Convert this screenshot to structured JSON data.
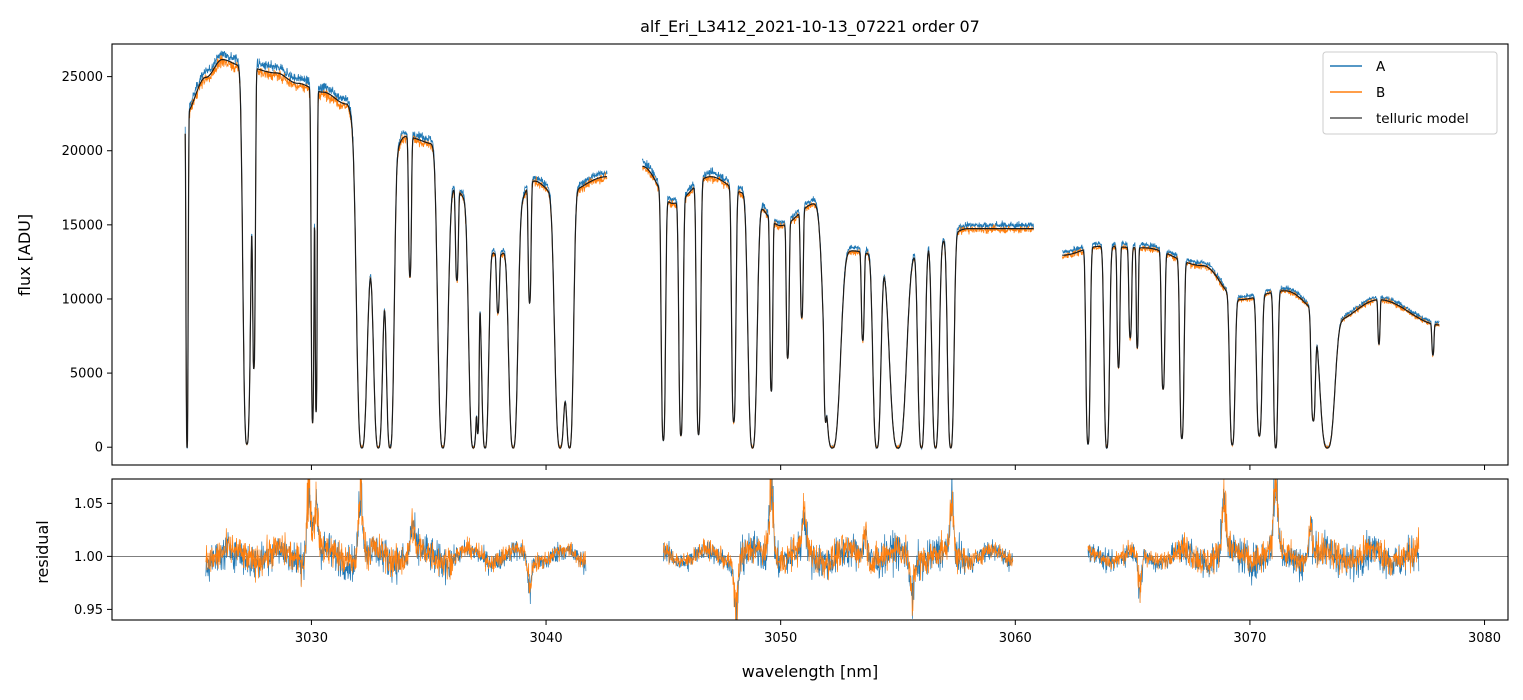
{
  "chart_data": [
    {
      "type": "line",
      "title": "alf_Eri_L3412_2021-10-13_07221  order 07",
      "xlabel": "",
      "ylabel": "flux [ADU]",
      "xlim": [
        3021.5,
        3081
      ],
      "ylim": [
        -1200,
        27200
      ],
      "yticks": [
        0,
        5000,
        10000,
        15000,
        20000,
        25000
      ],
      "xticks": [
        3030,
        3040,
        3050,
        3060,
        3070,
        3080
      ],
      "xticks_labeled": false,
      "legend": {
        "placement": "top-right",
        "entries": [
          "A",
          "B",
          "telluric model"
        ]
      },
      "series": [
        {
          "name": "A",
          "color": "#1f77b4"
        },
        {
          "name": "B",
          "color": "#ff7f0e"
        },
        {
          "name": "telluric model",
          "color": "#222222"
        }
      ],
      "continuum_nodes": [
        [
          3024.6,
          22500
        ],
        [
          3025.5,
          25000
        ],
        [
          3026.2,
          26200
        ],
        [
          3027.0,
          25800
        ],
        [
          3028.5,
          25300
        ],
        [
          3029.4,
          24600
        ],
        [
          3030.5,
          24000
        ],
        [
          3031.5,
          23200
        ],
        [
          3032.5,
          13000
        ],
        [
          3034.0,
          21000
        ],
        [
          3035.3,
          20500
        ],
        [
          3036.0,
          17500
        ],
        [
          3038.0,
          13000
        ],
        [
          3039.5,
          18000
        ],
        [
          3040.5,
          17000
        ],
        [
          3042.6,
          18300
        ],
        [
          3044.1,
          19000
        ],
        [
          3045.4,
          16500
        ],
        [
          3047.0,
          18300
        ],
        [
          3048.5,
          17200
        ],
        [
          3050.0,
          15000
        ],
        [
          3051.5,
          16500
        ],
        [
          3053.0,
          13300
        ],
        [
          3055.0,
          12600
        ],
        [
          3056.5,
          13800
        ],
        [
          3058.0,
          14800
        ],
        [
          3060.8,
          14800
        ],
        [
          3062.0,
          13000
        ],
        [
          3063.6,
          13600
        ],
        [
          3065.5,
          13500
        ],
        [
          3068.0,
          12300
        ],
        [
          3069.5,
          10000
        ],
        [
          3071.5,
          10600
        ],
        [
          3073.5,
          8500
        ],
        [
          3075.5,
          10000
        ],
        [
          3078.1,
          8300
        ]
      ],
      "gaps": [
        [
          3042.6,
          3044.1
        ],
        [
          3060.8,
          3062.0
        ]
      ],
      "absorption_lines": [
        [
          3024.7,
          1.0,
          0.06
        ],
        [
          3027.25,
          0.99,
          0.22
        ],
        [
          3027.55,
          0.78,
          0.08
        ],
        [
          3030.05,
          0.93,
          0.08
        ],
        [
          3030.2,
          0.9,
          0.06
        ],
        [
          3032.15,
          1.0,
          0.28
        ],
        [
          3032.85,
          1.0,
          0.25
        ],
        [
          3033.35,
          1.0,
          0.22
        ],
        [
          3034.2,
          0.45,
          0.08
        ],
        [
          3035.6,
          1.0,
          0.28
        ],
        [
          3036.2,
          0.35,
          0.08
        ],
        [
          3036.9,
          1.0,
          0.25
        ],
        [
          3037.1,
          0.85,
          0.06
        ],
        [
          3037.4,
          1.0,
          0.2
        ],
        [
          3037.95,
          0.3,
          0.08
        ],
        [
          3038.6,
          1.0,
          0.25
        ],
        [
          3039.3,
          0.45,
          0.08
        ],
        [
          3040.6,
          1.0,
          0.3
        ],
        [
          3041.0,
          1.0,
          0.22
        ],
        [
          3045.0,
          0.97,
          0.12
        ],
        [
          3045.75,
          0.95,
          0.12
        ],
        [
          3046.5,
          0.95,
          0.12
        ],
        [
          3048.0,
          0.9,
          0.12
        ],
        [
          3048.8,
          1.0,
          0.25
        ],
        [
          3049.6,
          0.75,
          0.08
        ],
        [
          3050.3,
          0.6,
          0.08
        ],
        [
          3050.9,
          0.45,
          0.08
        ],
        [
          3051.9,
          0.6,
          0.06
        ],
        [
          3052.2,
          1.0,
          0.45
        ],
        [
          3053.5,
          0.45,
          0.08
        ],
        [
          3054.1,
          1.0,
          0.22
        ],
        [
          3055.0,
          1.0,
          0.45
        ],
        [
          3056.0,
          1.0,
          0.2
        ],
        [
          3056.6,
          1.0,
          0.2
        ],
        [
          3057.25,
          1.0,
          0.18
        ],
        [
          3063.1,
          0.98,
          0.12
        ],
        [
          3063.9,
          1.0,
          0.15
        ],
        [
          3064.4,
          0.6,
          0.08
        ],
        [
          3064.9,
          0.45,
          0.08
        ],
        [
          3065.2,
          0.5,
          0.06
        ],
        [
          3066.3,
          0.7,
          0.1
        ],
        [
          3067.1,
          0.95,
          0.12
        ],
        [
          3069.25,
          0.98,
          0.15
        ],
        [
          3070.4,
          0.92,
          0.15
        ],
        [
          3071.1,
          1.0,
          0.12
        ],
        [
          3072.7,
          0.8,
          0.12
        ],
        [
          3073.3,
          1.0,
          0.4
        ],
        [
          3075.5,
          0.3,
          0.06
        ],
        [
          3077.8,
          0.25,
          0.06
        ]
      ]
    },
    {
      "type": "line",
      "title": "",
      "xlabel": "wavelength [nm]",
      "ylabel": "residual",
      "xlim": [
        3021.5,
        3081
      ],
      "ylim": [
        0.94,
        1.073
      ],
      "yticks": [
        0.95,
        1.0,
        1.05
      ],
      "ytick_labels": [
        "0.95",
        "1.00",
        "1.05"
      ],
      "xticks": [
        3030,
        3040,
        3050,
        3060,
        3070,
        3080
      ],
      "xtick_labels": [
        "3030",
        "3040",
        "3050",
        "3060",
        "3070",
        "3080"
      ],
      "reference_line": 1.0,
      "segments": [
        [
          3025.5,
          3041.7
        ],
        [
          3045.0,
          3059.9
        ],
        [
          3063.1,
          3077.2
        ]
      ],
      "spikes": [
        [
          3029.9,
          0.08
        ],
        [
          3030.2,
          0.05
        ],
        [
          3032.1,
          0.07
        ],
        [
          3034.3,
          0.03
        ],
        [
          3039.3,
          -0.03
        ],
        [
          3048.1,
          -0.05
        ],
        [
          3049.6,
          0.08
        ],
        [
          3051.0,
          0.04
        ],
        [
          3053.6,
          0.03
        ],
        [
          3055.6,
          -0.04
        ],
        [
          3057.3,
          0.05
        ],
        [
          3065.3,
          -0.04
        ],
        [
          3068.9,
          0.06
        ],
        [
          3071.1,
          0.08
        ],
        [
          3072.6,
          0.03
        ]
      ],
      "series": [
        {
          "name": "A",
          "color": "#1f77b4"
        },
        {
          "name": "B",
          "color": "#ff7f0e"
        }
      ]
    }
  ]
}
